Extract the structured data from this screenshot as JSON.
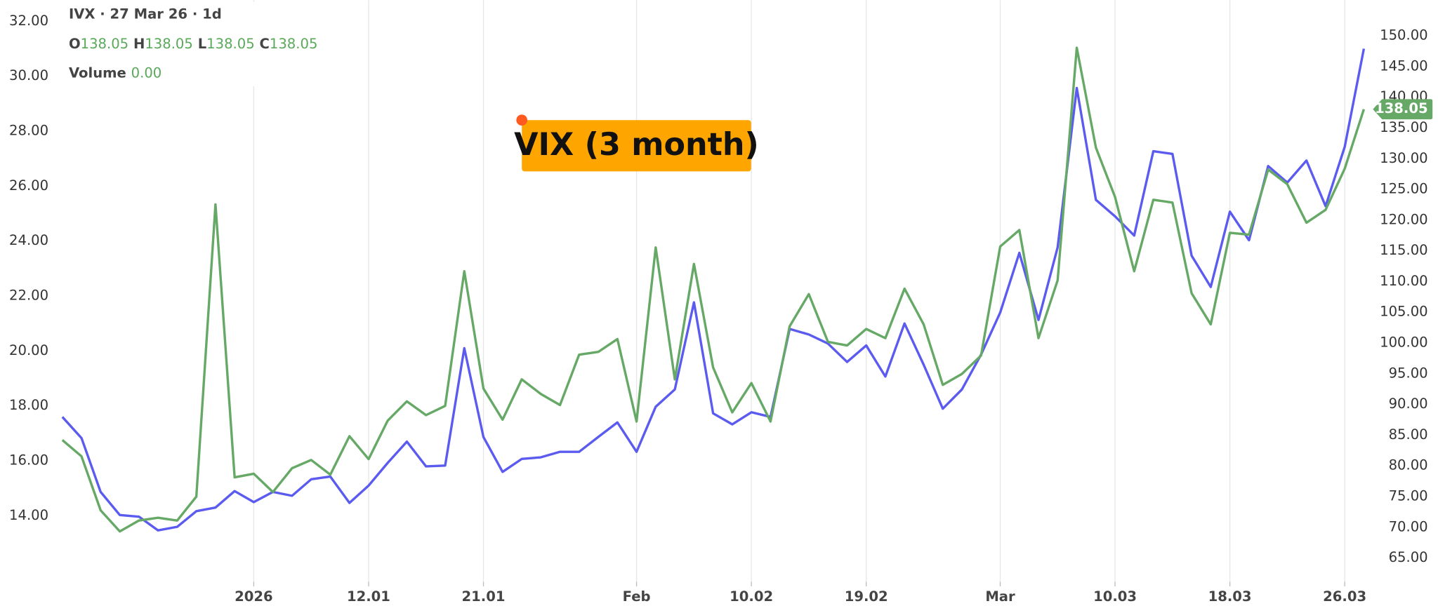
{
  "chart_data": {
    "type": "line",
    "header": {
      "symbol": "IVX · 27 Mar 26 · 1d",
      "ohlc": [
        {
          "label": "O",
          "value": 138.05
        },
        {
          "label": "H",
          "value": 138.05
        },
        {
          "label": "L",
          "value": 138.05
        },
        {
          "label": "C",
          "value": 138.05
        }
      ],
      "volume": {
        "label": "Volume",
        "value": "0.00"
      }
    },
    "annotation": "VIX (3 month)",
    "price_label": 138.05,
    "categories": [
      null,
      null,
      null,
      null,
      null,
      null,
      null,
      null,
      null,
      null,
      "2026",
      null,
      null,
      null,
      null,
      null,
      "12.01",
      null,
      null,
      null,
      null,
      null,
      "21.01",
      null,
      null,
      null,
      null,
      null,
      null,
      null,
      "Feb",
      null,
      null,
      null,
      null,
      null,
      "10.02",
      null,
      null,
      null,
      null,
      null,
      "19.02",
      null,
      null,
      null,
      null,
      null,
      null,
      "Mar",
      null,
      null,
      null,
      null,
      null,
      "10.03",
      null,
      null,
      null,
      null,
      null,
      "18.03",
      null,
      null,
      null,
      null,
      null,
      "26.03",
      null
    ],
    "series": [
      {
        "color": "#5b5bf0",
        "axis": "y",
        "values": [
          17.6,
          16.83,
          14.87,
          14.03,
          13.97,
          13.47,
          13.6,
          14.17,
          14.3,
          14.9,
          14.5,
          14.87,
          14.73,
          15.33,
          15.43,
          14.47,
          15.1,
          15.93,
          16.7,
          15.8,
          15.83,
          20.1,
          16.87,
          15.6,
          16.07,
          16.13,
          16.33,
          16.33,
          16.87,
          17.4,
          16.33,
          17.97,
          18.6,
          21.77,
          17.73,
          17.33,
          17.77,
          17.6,
          20.8,
          20.6,
          20.27,
          19.6,
          20.2,
          19.07,
          21.0,
          19.5,
          17.9,
          18.6,
          19.87,
          21.4,
          23.57,
          21.13,
          23.77,
          29.57,
          25.5,
          24.9,
          24.2,
          27.27,
          27.17,
          23.47,
          22.33,
          25.07,
          24.03,
          26.73,
          26.13,
          26.93,
          25.27,
          27.43,
          31.0
        ]
      },
      {
        "color": "#66a866",
        "axis": "y2",
        "values": [
          84.2,
          81.55,
          72.76,
          69.33,
          71.1,
          71.56,
          71.1,
          75.0,
          122.56,
          78.13,
          78.72,
          75.74,
          79.62,
          80.96,
          78.57,
          84.83,
          81.1,
          87.37,
          90.5,
          88.26,
          89.76,
          111.68,
          92.59,
          87.52,
          94.08,
          91.7,
          89.9,
          98.1,
          98.55,
          100.64,
          87.22,
          115.55,
          94.08,
          112.87,
          96.02,
          88.71,
          93.48,
          87.22,
          102.73,
          107.95,
          100.19,
          99.6,
          102.28,
          100.79,
          108.84,
          103.03,
          93.18,
          94.97,
          97.96,
          115.7,
          118.39,
          100.79,
          110.19,
          148.06,
          131.8,
          123.76,
          111.68,
          123.31,
          122.86,
          108.1,
          103.03,
          117.94,
          117.64,
          128.23,
          125.84,
          119.58,
          121.67,
          128.38,
          138.05
        ]
      }
    ],
    "ylim": [
      11.6,
      32.77
    ],
    "yticks": [
      {
        "value": 14,
        "label": "14.00"
      },
      {
        "value": 16,
        "label": "16.00"
      },
      {
        "value": 18,
        "label": "18.00"
      },
      {
        "value": 20,
        "label": "20.00"
      },
      {
        "value": 22,
        "label": "22.00"
      },
      {
        "value": 24,
        "label": "24.00"
      },
      {
        "value": 26,
        "label": "26.00"
      },
      {
        "value": 28,
        "label": "28.00"
      },
      {
        "value": 30,
        "label": "30.00"
      },
      {
        "value": 32,
        "label": "32.00"
      }
    ],
    "y2lim": [
      61.13,
      155.82
    ],
    "y2ticks": [
      {
        "value": 65,
        "label": "65.00"
      },
      {
        "value": 70,
        "label": "70.00"
      },
      {
        "value": 75,
        "label": "75.00"
      },
      {
        "value": 80,
        "label": "80.00"
      },
      {
        "value": 85,
        "label": "85.00"
      },
      {
        "value": 90,
        "label": "90.00"
      },
      {
        "value": 95,
        "label": "95.00"
      },
      {
        "value": 100,
        "label": "100.00"
      },
      {
        "value": 105,
        "label": "105.00"
      },
      {
        "value": 110,
        "label": "110.00"
      },
      {
        "value": 115,
        "label": "115.00"
      },
      {
        "value": 120,
        "label": "120.00"
      },
      {
        "value": 125,
        "label": "125.00"
      },
      {
        "value": 130,
        "label": "130.00"
      },
      {
        "value": 135,
        "label": "135.00"
      },
      {
        "value": 140,
        "label": "140.00"
      },
      {
        "value": 145,
        "label": "145.00"
      },
      {
        "value": 150,
        "label": "150.00"
      }
    ],
    "grid": true
  }
}
